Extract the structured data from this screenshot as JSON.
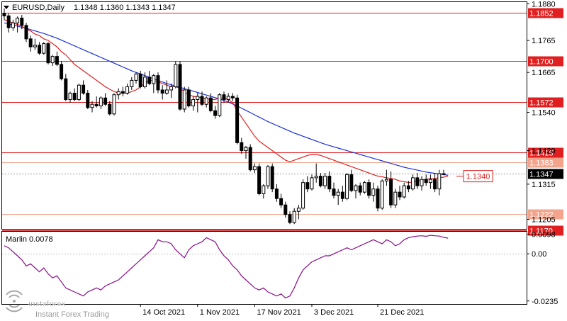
{
  "header": {
    "symbol_line": "EURUSD,Daily",
    "ohlc": "1.1348 1.1360 1.1343 1.1347"
  },
  "colors": {
    "bull": "#000000",
    "bear": "#000000",
    "ma_fast": "#e02020",
    "ma_slow": "#1a2ee0",
    "level": "#e02020",
    "level_light": "#f2a58c",
    "indicator": "#8a0f8a",
    "price_tag": "#000000"
  },
  "chart_data": [
    {
      "type": "candlestick",
      "title": "EURUSD,Daily",
      "ylim": [
        1.1175,
        1.1885
      ],
      "price_axis_ticks": [
        "1.1880",
        "1.1765",
        "1.1665",
        "1.1540",
        "1.1420",
        "1.1315",
        "1.1205"
      ],
      "date_labels": [
        "14 Oct 2021",
        "1 Nov 2021",
        "17 Nov 2021",
        "3 Dec 2021",
        "21 Dec 2021"
      ],
      "level_labels": [
        {
          "value": 1.1852,
          "label": "1.1852",
          "style": "solid"
        },
        {
          "value": 1.17,
          "label": "1.1700",
          "style": "solid"
        },
        {
          "value": 1.1572,
          "label": "1.1572",
          "style": "solid"
        },
        {
          "value": 1.1415,
          "label": "1.1415",
          "style": "solid"
        },
        {
          "value": 1.1383,
          "label": "1.1383",
          "style": "light"
        },
        {
          "value": 1.1222,
          "label": "1.1222",
          "style": "light"
        },
        {
          "value": 1.117,
          "label": "1.1170",
          "style": "solid"
        }
      ],
      "current_price": {
        "value": 1.1347,
        "label": "1.1347"
      },
      "annotation": {
        "value": 1.134,
        "label": "1.1340"
      },
      "candles": [
        [
          1.185,
          1.1865,
          1.183,
          1.1842
        ],
        [
          1.1842,
          1.185,
          1.179,
          1.1805
        ],
        [
          1.1805,
          1.183,
          1.1795,
          1.182
        ],
        [
          1.182,
          1.184,
          1.179,
          1.1835
        ],
        [
          1.1835,
          1.1845,
          1.18,
          1.1812
        ],
        [
          1.1812,
          1.182,
          1.176,
          1.177
        ],
        [
          1.177,
          1.178,
          1.173,
          1.1745
        ],
        [
          1.1745,
          1.177,
          1.1735,
          1.175
        ],
        [
          1.175,
          1.176,
          1.172,
          1.1725
        ],
        [
          1.1725,
          1.176,
          1.172,
          1.1755
        ],
        [
          1.1755,
          1.176,
          1.169,
          1.1695
        ],
        [
          1.1695,
          1.172,
          1.1685,
          1.1715
        ],
        [
          1.1715,
          1.173,
          1.1685,
          1.169
        ],
        [
          1.169,
          1.17,
          1.164,
          1.1645
        ],
        [
          1.1645,
          1.166,
          1.1575,
          1.158
        ],
        [
          1.158,
          1.1605,
          1.157,
          1.16
        ],
        [
          1.16,
          1.1615,
          1.1575,
          1.158
        ],
        [
          1.158,
          1.163,
          1.1575,
          1.1625
        ],
        [
          1.1625,
          1.164,
          1.1595,
          1.16
        ],
        [
          1.16,
          1.161,
          1.155,
          1.1555
        ],
        [
          1.1555,
          1.1575,
          1.154,
          1.1565
        ],
        [
          1.1565,
          1.159,
          1.1555,
          1.156
        ],
        [
          1.156,
          1.159,
          1.155,
          1.1585
        ],
        [
          1.1585,
          1.16,
          1.156,
          1.1565
        ],
        [
          1.1565,
          1.1575,
          1.153,
          1.1535
        ],
        [
          1.1535,
          1.16,
          1.153,
          1.1595
        ],
        [
          1.1595,
          1.1615,
          1.158,
          1.1605
        ],
        [
          1.1605,
          1.162,
          1.159,
          1.16
        ],
        [
          1.16,
          1.163,
          1.1595,
          1.162
        ],
        [
          1.162,
          1.165,
          1.161,
          1.164
        ],
        [
          1.164,
          1.1665,
          1.163,
          1.166
        ],
        [
          1.166,
          1.167,
          1.1615,
          1.162
        ],
        [
          1.162,
          1.1665,
          1.1615,
          1.165
        ],
        [
          1.165,
          1.167,
          1.1625,
          1.163
        ],
        [
          1.163,
          1.166,
          1.16,
          1.1655
        ],
        [
          1.1655,
          1.1665,
          1.16,
          1.161
        ],
        [
          1.161,
          1.1625,
          1.158,
          1.16
        ],
        [
          1.16,
          1.164,
          1.1595,
          1.161
        ],
        [
          1.161,
          1.163,
          1.1585,
          1.162
        ],
        [
          1.162,
          1.17,
          1.1615,
          1.169
        ],
        [
          1.169,
          1.17,
          1.1545,
          1.155
        ],
        [
          1.155,
          1.162,
          1.154,
          1.161
        ],
        [
          1.161,
          1.162,
          1.1555,
          1.156
        ],
        [
          1.156,
          1.159,
          1.1545,
          1.158
        ],
        [
          1.158,
          1.16,
          1.154,
          1.159
        ],
        [
          1.159,
          1.1605,
          1.156,
          1.1565
        ],
        [
          1.1565,
          1.159,
          1.1555,
          1.1585
        ],
        [
          1.1585,
          1.16,
          1.154,
          1.1545
        ],
        [
          1.1545,
          1.156,
          1.152,
          1.153
        ],
        [
          1.153,
          1.16,
          1.1525,
          1.1595
        ],
        [
          1.1595,
          1.1605,
          1.157,
          1.158
        ],
        [
          1.158,
          1.16,
          1.157,
          1.159
        ],
        [
          1.159,
          1.16,
          1.1575,
          1.1585
        ],
        [
          1.1585,
          1.1595,
          1.144,
          1.1445
        ],
        [
          1.1445,
          1.146,
          1.141,
          1.142
        ],
        [
          1.142,
          1.1435,
          1.1395,
          1.143
        ],
        [
          1.143,
          1.144,
          1.1355,
          1.136
        ],
        [
          1.136,
          1.138,
          1.135,
          1.137
        ],
        [
          1.137,
          1.138,
          1.128,
          1.1285
        ],
        [
          1.1285,
          1.1315,
          1.127,
          1.131
        ],
        [
          1.131,
          1.1375,
          1.13,
          1.137
        ],
        [
          1.137,
          1.138,
          1.129,
          1.13
        ],
        [
          1.13,
          1.1315,
          1.126,
          1.127
        ],
        [
          1.127,
          1.1285,
          1.124,
          1.125
        ],
        [
          1.125,
          1.126,
          1.121,
          1.122
        ],
        [
          1.122,
          1.123,
          1.119,
          1.1195
        ],
        [
          1.1195,
          1.124,
          1.119,
          1.123
        ],
        [
          1.123,
          1.125,
          1.1205,
          1.124
        ],
        [
          1.124,
          1.133,
          1.1235,
          1.132
        ],
        [
          1.132,
          1.134,
          1.129,
          1.13
        ],
        [
          1.13,
          1.1345,
          1.1295,
          1.1335
        ],
        [
          1.1335,
          1.138,
          1.132,
          1.134
        ],
        [
          1.134,
          1.135,
          1.1305,
          1.131
        ],
        [
          1.131,
          1.135,
          1.13,
          1.134
        ],
        [
          1.134,
          1.1355,
          1.129,
          1.13
        ],
        [
          1.13,
          1.132,
          1.127,
          1.128
        ],
        [
          1.128,
          1.13,
          1.125,
          1.129
        ],
        [
          1.129,
          1.131,
          1.126,
          1.127
        ],
        [
          1.127,
          1.135,
          1.1265,
          1.1345
        ],
        [
          1.1345,
          1.136,
          1.129,
          1.1295
        ],
        [
          1.1295,
          1.1315,
          1.127,
          1.131
        ],
        [
          1.131,
          1.132,
          1.128,
          1.129
        ],
        [
          1.129,
          1.1325,
          1.1285,
          1.132
        ],
        [
          1.132,
          1.133,
          1.127,
          1.128
        ],
        [
          1.128,
          1.132,
          1.126,
          1.13
        ],
        [
          1.13,
          1.131,
          1.123,
          1.124
        ],
        [
          1.124,
          1.133,
          1.1235,
          1.1325
        ],
        [
          1.1325,
          1.136,
          1.131,
          1.133
        ],
        [
          1.133,
          1.1355,
          1.124,
          1.125
        ],
        [
          1.125,
          1.13,
          1.124,
          1.129
        ],
        [
          1.129,
          1.131,
          1.1265,
          1.1275
        ],
        [
          1.1275,
          1.132,
          1.127,
          1.131
        ],
        [
          1.131,
          1.1325,
          1.129,
          1.13
        ],
        [
          1.13,
          1.1345,
          1.1295,
          1.1335
        ],
        [
          1.1335,
          1.135,
          1.13,
          1.131
        ],
        [
          1.131,
          1.134,
          1.1295,
          1.133
        ],
        [
          1.133,
          1.1345,
          1.131,
          1.132
        ],
        [
          1.132,
          1.1345,
          1.13,
          1.133
        ],
        [
          1.133,
          1.135,
          1.129,
          1.13
        ],
        [
          1.13,
          1.136,
          1.128,
          1.1348
        ],
        [
          1.1348,
          1.136,
          1.1343,
          1.1347
        ]
      ],
      "ma_fast_values": [
        1.183,
        1.1825,
        1.182,
        1.1815,
        1.181,
        1.18,
        1.1795,
        1.1785,
        1.178,
        1.177,
        1.1765,
        1.1755,
        1.1745,
        1.173,
        1.172,
        1.1705,
        1.169,
        1.168,
        1.167,
        1.166,
        1.165,
        1.164,
        1.163,
        1.162,
        1.1612,
        1.1605,
        1.16,
        1.16,
        1.16,
        1.1605,
        1.161,
        1.162,
        1.163,
        1.164,
        1.164,
        1.1635,
        1.163,
        1.1625,
        1.162,
        1.162,
        1.1615,
        1.1605,
        1.1595,
        1.159,
        1.1588,
        1.1585,
        1.1583,
        1.158,
        1.158,
        1.1585,
        1.1585,
        1.158,
        1.157,
        1.1545,
        1.1525,
        1.1505,
        1.1485,
        1.1465,
        1.145,
        1.144,
        1.143,
        1.142,
        1.141,
        1.14,
        1.139,
        1.1385,
        1.139,
        1.1395,
        1.14,
        1.1405,
        1.1408,
        1.1408,
        1.1405,
        1.14,
        1.1395,
        1.139,
        1.1385,
        1.138,
        1.1375,
        1.137,
        1.1365,
        1.136,
        1.1355,
        1.135,
        1.1345,
        1.134,
        1.1338,
        1.1335,
        1.1333,
        1.133,
        1.1325,
        1.1323,
        1.132,
        1.1322,
        1.1325,
        1.1328,
        1.133,
        1.1332,
        1.1333,
        1.1335,
        1.1337,
        1.134
      ],
      "ma_slow_values": [
        1.182,
        1.1817,
        1.1813,
        1.181,
        1.1806,
        1.1803,
        1.1799,
        1.1795,
        1.1791,
        1.1787,
        1.1782,
        1.1777,
        1.1772,
        1.1766,
        1.176,
        1.1754,
        1.1748,
        1.1742,
        1.1736,
        1.173,
        1.1724,
        1.1718,
        1.1712,
        1.1706,
        1.17,
        1.1694,
        1.1688,
        1.1682,
        1.1676,
        1.167,
        1.1665,
        1.166,
        1.1655,
        1.165,
        1.1645,
        1.164,
        1.1635,
        1.163,
        1.1626,
        1.1622,
        1.1618,
        1.1614,
        1.161,
        1.1606,
        1.1602,
        1.1598,
        1.1594,
        1.159,
        1.1586,
        1.1582,
        1.1577,
        1.1572,
        1.1566,
        1.156,
        1.1553,
        1.1546,
        1.1539,
        1.1532,
        1.1525,
        1.1518,
        1.1511,
        1.1505,
        1.1499,
        1.1493,
        1.1487,
        1.1481,
        1.1475,
        1.147,
        1.1465,
        1.146,
        1.1455,
        1.145,
        1.1445,
        1.144,
        1.1436,
        1.1432,
        1.1428,
        1.1424,
        1.142,
        1.1416,
        1.1412,
        1.1408,
        1.1404,
        1.14,
        1.1396,
        1.1392,
        1.1388,
        1.1384,
        1.138,
        1.1376,
        1.1372,
        1.1368,
        1.1365,
        1.1362,
        1.1359,
        1.1356,
        1.1353,
        1.1351,
        1.1349,
        1.1347,
        1.1345,
        1.1343
      ]
    },
    {
      "type": "line",
      "title": "Marlin 0.0078",
      "ylim": [
        -0.025,
        0.011
      ],
      "axis_ticks": [
        "0.0098",
        "0.00",
        "-0.0235"
      ],
      "zero_line": 0.0,
      "values": [
        0.004,
        0.003,
        0.001,
        -0.001,
        -0.003,
        -0.006,
        -0.005,
        -0.007,
        -0.009,
        -0.007,
        -0.01,
        -0.012,
        -0.011,
        -0.014,
        -0.017,
        -0.018,
        -0.019,
        -0.02,
        -0.021,
        -0.019,
        -0.018,
        -0.017,
        -0.018,
        -0.016,
        -0.015,
        -0.014,
        -0.013,
        -0.011,
        -0.009,
        -0.007,
        -0.005,
        -0.003,
        -0.001,
        0.001,
        0.003,
        0.007,
        0.006,
        0.006,
        0.005,
        0.002,
        0.0,
        -0.002,
        0.002,
        0.004,
        0.005,
        0.006,
        0.008,
        0.007,
        0.006,
        0.002,
        -0.001,
        -0.003,
        -0.006,
        -0.008,
        -0.011,
        -0.013,
        -0.015,
        -0.017,
        -0.018,
        -0.017,
        -0.019,
        -0.02,
        -0.021,
        -0.02,
        -0.022,
        -0.021,
        -0.017,
        -0.012,
        -0.008,
        -0.006,
        -0.004,
        -0.003,
        -0.002,
        -0.001,
        -0.001,
        0.0,
        0.001,
        0.002,
        0.003,
        0.002,
        0.003,
        0.004,
        0.005,
        0.006,
        0.007,
        0.006,
        0.005,
        0.007,
        0.006,
        0.004,
        0.005,
        0.007,
        0.008,
        0.0085,
        0.0088,
        0.009,
        0.0087,
        0.0092,
        0.009,
        0.0088,
        0.0082,
        0.0078
      ]
    }
  ],
  "watermark": {
    "brand": "instaforex",
    "tagline": "Instant Forex Trading"
  }
}
